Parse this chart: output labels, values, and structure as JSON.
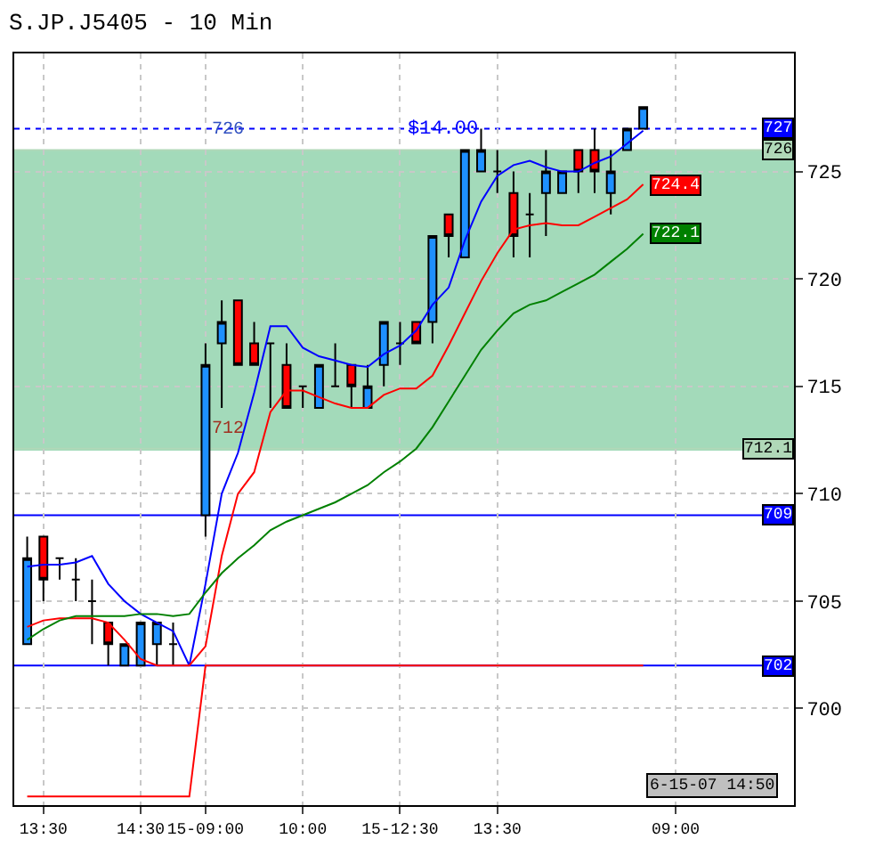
{
  "chart_data": {
    "type": "candlestick",
    "title": "S.JP.J5405 - 10 Min",
    "categories": [
      null,
      "13:30",
      null,
      null,
      null,
      null,
      null,
      "14:30",
      null,
      null,
      null,
      "15-09:00",
      null,
      null,
      null,
      null,
      null,
      "10:00",
      null,
      null,
      null,
      null,
      null,
      "15-12:30",
      null,
      null,
      null,
      null,
      null,
      "13:30",
      null,
      null,
      null,
      null,
      null,
      null,
      null,
      null,
      null,
      null,
      "09:00",
      null,
      null,
      null,
      null,
      null,
      null,
      null
    ],
    "ohlc": [
      [
        703,
        708,
        703,
        707
      ],
      [
        708,
        708,
        705,
        706
      ],
      [
        707,
        707,
        706,
        707
      ],
      [
        706,
        707,
        705,
        706
      ],
      [
        705,
        706,
        703,
        705
      ],
      [
        704,
        704,
        702,
        703
      ],
      [
        702,
        703,
        702,
        703
      ],
      [
        702,
        704,
        702,
        704
      ],
      [
        703,
        704,
        702,
        704
      ],
      [
        703,
        704,
        702,
        703
      ],
      null,
      [
        709,
        717,
        708,
        716
      ],
      [
        717,
        719,
        714,
        718
      ],
      [
        719,
        719,
        716,
        716
      ],
      [
        717,
        718,
        716,
        716
      ],
      [
        717,
        717,
        714,
        717
      ],
      [
        716,
        717,
        714,
        714
      ],
      [
        715,
        715,
        714,
        715
      ],
      [
        714,
        716,
        714,
        716
      ],
      [
        715,
        717,
        715,
        715
      ],
      [
        716,
        716,
        714,
        715
      ],
      [
        714,
        716,
        714,
        715
      ],
      [
        716,
        718,
        715,
        718
      ],
      [
        717,
        718,
        716,
        717
      ],
      [
        718,
        718,
        717,
        717
      ],
      [
        718,
        722,
        717,
        722
      ],
      [
        723,
        723,
        721,
        722
      ],
      [
        721,
        726,
        721,
        726
      ],
      [
        725,
        727,
        725,
        726
      ],
      [
        725,
        726,
        724,
        725
      ],
      [
        724,
        725,
        721,
        722
      ],
      [
        723,
        724,
        721,
        723
      ],
      [
        724,
        726,
        722,
        725
      ],
      [
        724,
        725,
        724,
        725
      ],
      [
        726,
        726,
        724,
        725
      ],
      [
        726,
        727,
        724,
        725
      ],
      [
        724,
        726,
        723,
        725
      ],
      [
        726,
        727,
        726,
        727
      ],
      [
        727,
        728,
        727,
        728
      ],
      null,
      null,
      null,
      null,
      null,
      null,
      null,
      null,
      null
    ],
    "series": [
      {
        "type": "line",
        "color": "#0000ff",
        "values": [
          706.6,
          706.7,
          706.7,
          706.8,
          707.1,
          705.8,
          705.0,
          704.4,
          704.0,
          703.6,
          702,
          705.8,
          710,
          711.9,
          714.7,
          717.8,
          717.8,
          716.8,
          716.4,
          716.2,
          716.0,
          715.9,
          716.5,
          716.9,
          717.6,
          718.8,
          719.6,
          721.8,
          723.6,
          724.8,
          725.3,
          725.5,
          725.2,
          725.0,
          725.0,
          725.4,
          725.7,
          726.3,
          726.9,
          null,
          null,
          null,
          null,
          null,
          null,
          null,
          null,
          null
        ]
      },
      {
        "type": "line",
        "color": "#ff0000",
        "values": [
          703.8,
          704.1,
          704.2,
          704.2,
          704.2,
          704.0,
          703.2,
          702.3,
          702.0,
          702.0,
          702.0,
          702.9,
          707.1,
          710.0,
          711.0,
          713.8,
          714.8,
          714.8,
          714.5,
          714.2,
          714.0,
          714.0,
          714.6,
          714.9,
          714.9,
          715.5,
          716.9,
          718.4,
          719.9,
          721.2,
          722.3,
          722.5,
          722.6,
          722.5,
          722.5,
          722.9,
          723.3,
          723.7,
          724.4,
          null,
          null,
          null,
          null,
          null,
          null,
          null,
          null,
          null
        ],
        "value_labels": [
          null,
          null,
          null,
          null,
          null,
          null,
          null,
          null,
          null,
          null,
          null,
          null,
          null,
          null,
          null,
          null,
          null,
          null,
          null,
          null,
          null,
          null,
          null,
          null,
          null,
          null,
          null,
          null,
          null,
          null,
          null,
          null,
          null,
          null,
          null,
          null,
          null,
          null,
          "724.4",
          null,
          null,
          null,
          null,
          null,
          null,
          null,
          null,
          null
        ]
      },
      {
        "type": "line",
        "color": "#008000",
        "values": [
          703.2,
          703.7,
          704.1,
          704.3,
          704.3,
          704.3,
          704.3,
          704.4,
          704.4,
          704.3,
          704.4,
          705.4,
          706.3,
          707.0,
          707.6,
          708.3,
          708.7,
          709.0,
          709.3,
          709.6,
          710.0,
          710.4,
          711.0,
          711.5,
          712.1,
          713.1,
          714.3,
          715.5,
          716.7,
          717.6,
          718.4,
          718.8,
          719.0,
          719.4,
          719.8,
          720.2,
          720.8,
          721.4,
          722.1,
          null,
          null,
          null,
          null,
          null,
          null,
          null,
          null,
          null
        ],
        "value_labels": [
          null,
          null,
          null,
          null,
          null,
          null,
          null,
          null,
          null,
          null,
          null,
          null,
          null,
          null,
          null,
          null,
          null,
          null,
          null,
          null,
          null,
          null,
          null,
          null,
          null,
          null,
          null,
          null,
          null,
          null,
          null,
          null,
          null,
          null,
          null,
          null,
          null,
          null,
          "722.1",
          null,
          null,
          null,
          null,
          null,
          null,
          null,
          null,
          null
        ]
      },
      {
        "type": "line",
        "color": "#ff0000",
        "values": [
          695.9,
          695.9,
          695.9,
          695.9,
          695.9,
          695.9,
          695.9,
          695.9,
          695.9,
          695.9,
          695.9,
          702,
          702,
          702,
          702,
          702,
          702,
          702,
          702,
          702,
          702,
          702,
          702,
          702,
          702,
          702,
          702,
          702,
          702,
          702,
          702,
          702,
          702,
          702,
          702,
          702,
          702,
          702,
          702,
          null,
          null,
          null,
          null,
          null,
          null,
          null,
          null,
          null
        ]
      }
    ],
    "ylim": [
      695.5,
      730.5
    ],
    "yticks": [
      700,
      705,
      710,
      715,
      720,
      725
    ],
    "bands": [
      {
        "axis": "y",
        "from": 712,
        "to": 726,
        "color": "#99d6b3"
      }
    ],
    "ref_lines": [
      {
        "axis": "y",
        "value": 727,
        "label": "727",
        "color": "#0000ff",
        "line_style": "dotted"
      },
      {
        "axis": "y",
        "value": 726,
        "label": "726",
        "color": "#b0d8b8",
        "line_style": "solid"
      },
      {
        "axis": "y",
        "value": 712.1,
        "label": "712.1",
        "color": "#b0d8b8",
        "line_style": "solid"
      },
      {
        "axis": "y",
        "value": 709,
        "label": "709",
        "color": "#0000ff",
        "line_style": "solid"
      },
      {
        "axis": "y",
        "value": 702,
        "label": "702",
        "color": "#0000ff",
        "line_style": "solid"
      }
    ],
    "annotations": [
      {
        "text": "$14.00",
        "x": "15-12:30",
        "y": 726
      },
      {
        "text": "726",
        "x": "15-09:00",
        "y": 726
      },
      {
        "text": "712",
        "x": "15-09:00",
        "y": 712
      },
      "6-15-07 14:50"
    ],
    "grid": true
  }
}
